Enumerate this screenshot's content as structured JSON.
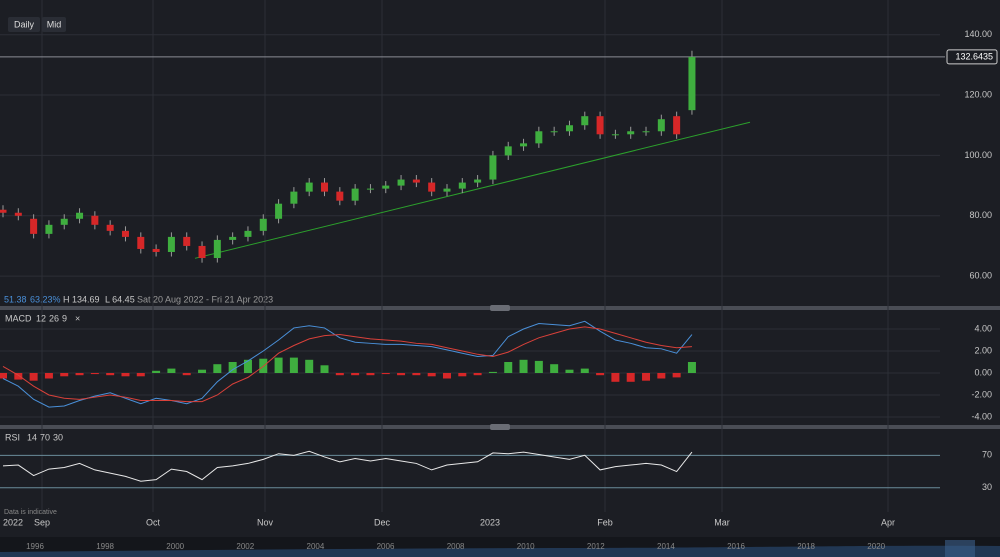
{
  "toolbar": {
    "buttons": [
      "Daily",
      "Mid"
    ]
  },
  "chart_data": [
    {
      "type": "candlestick",
      "up_color": "#3fae3f",
      "down_color": "#d62728",
      "open": [
        82,
        81,
        79,
        74,
        77,
        79,
        80,
        77,
        75,
        73,
        69,
        68,
        73,
        70,
        66,
        72,
        73,
        75,
        79,
        84,
        88,
        91,
        88,
        85,
        89,
        89,
        90,
        92,
        91,
        88,
        89,
        91,
        92,
        100,
        103,
        104,
        108,
        108,
        110,
        113,
        107,
        107,
        108,
        108,
        113,
        115
      ],
      "high": [
        83.5,
        82.5,
        80.5,
        78.5,
        80.5,
        82.5,
        81.5,
        78.5,
        76.5,
        74.5,
        70.5,
        74.5,
        74.5,
        71.5,
        73.5,
        74.5,
        76.5,
        80.5,
        85.5,
        89.5,
        92.5,
        92.5,
        89.5,
        90.5,
        90.5,
        91.5,
        93.5,
        93.5,
        92.5,
        90.5,
        92.5,
        93.5,
        101.5,
        104.5,
        105.5,
        109.5,
        109.5,
        111.5,
        114.5,
        114.5,
        108.5,
        109.5,
        109.5,
        113.5,
        114.5,
        134.69
      ],
      "low": [
        79.5,
        78.5,
        72.5,
        72.5,
        75.5,
        77.5,
        75.5,
        73.5,
        71.5,
        67.5,
        66.5,
        66.5,
        68.5,
        64.45,
        64.5,
        70.5,
        71.5,
        73.5,
        77.5,
        82.5,
        86.5,
        86.5,
        83.5,
        83.5,
        87.5,
        87.5,
        88.5,
        89.5,
        86.5,
        86.5,
        87.5,
        89.5,
        90.5,
        98.5,
        101.5,
        102.5,
        106.5,
        106.5,
        108.5,
        105.5,
        105.5,
        105.5,
        106.5,
        106.5,
        105.5,
        113.5
      ],
      "close": [
        81,
        80,
        74,
        77,
        79,
        81,
        77,
        75,
        73,
        69,
        68,
        73,
        70,
        66,
        72,
        73,
        75,
        79,
        84,
        88,
        91,
        88,
        85,
        89,
        89,
        90,
        92,
        91,
        88,
        89,
        91,
        92,
        100,
        103,
        104,
        108,
        108,
        110,
        113,
        107,
        107,
        108,
        108,
        112,
        107,
        132.6435
      ],
      "ylim": [
        50.1,
        151.5
      ],
      "yticks": [
        {
          "value": 60,
          "label": "60.00"
        },
        {
          "value": 80,
          "label": "80.00"
        },
        {
          "value": 100,
          "label": "100.00"
        },
        {
          "value": 120,
          "label": "120.00"
        },
        {
          "value": 140,
          "label": "140.00"
        }
      ],
      "last_price": {
        "value": 132.6435,
        "label": "132.6435"
      },
      "trendline": {
        "color": "#2ca02c",
        "values": [
          65.9,
          111
        ]
      },
      "stats": [
        "51.38",
        "63.23%"
      ],
      "high_text": "H 134.69",
      "low_text": "L 64.45",
      "range_text": "Sat 20 Aug 2022 - Fri 21 Apr 2023"
    },
    {
      "type": "macd",
      "title": "MACD",
      "params": [
        12,
        26,
        9
      ],
      "close_icon": "×",
      "series": [
        {
          "color": "#4a90d9",
          "values": [
            -0.5,
            -1.2,
            -2.4,
            -3.1,
            -3.0,
            -2.5,
            -2.1,
            -1.8,
            -2.3,
            -2.8,
            -2.3,
            -2.5,
            -2.8,
            -2.3,
            -0.8,
            0.3,
            1.1,
            2.0,
            3.0,
            4.1,
            4.3,
            4.1,
            3.2,
            2.8,
            2.7,
            2.6,
            2.6,
            2.5,
            2.4,
            2.1,
            1.8,
            1.5,
            1.6,
            3.3,
            4.0,
            4.5,
            4.4,
            4.3,
            4.7,
            3.8,
            3.0,
            2.7,
            2.3,
            2.2,
            1.8,
            3.5
          ]
        },
        {
          "color": "#d9413a",
          "values": [
            0.6,
            -0.2,
            -1.2,
            -2.0,
            -2.3,
            -2.4,
            -2.2,
            -2.0,
            -2.2,
            -2.5,
            -2.5,
            -2.5,
            -2.6,
            -2.6,
            -2.0,
            -1.0,
            -0.4,
            0.6,
            1.8,
            2.5,
            3.1,
            3.4,
            3.5,
            3.3,
            3.1,
            3.0,
            2.9,
            2.7,
            2.6,
            2.3,
            2.0,
            1.7,
            1.5,
            1.9,
            2.6,
            3.2,
            3.6,
            4.0,
            4.2,
            4.0,
            3.6,
            3.2,
            2.8,
            2.5,
            2.3,
            2.4
          ]
        }
      ],
      "histogram": {
        "up_color": "#3fae3f",
        "down_color": "#d62728",
        "values": [
          -0.5,
          -0.6,
          -0.7,
          -0.5,
          -0.3,
          -0.2,
          -0.1,
          -0.2,
          -0.3,
          -0.3,
          0.2,
          0.4,
          -0.2,
          0.3,
          0.8,
          1.0,
          1.2,
          1.3,
          1.4,
          1.4,
          1.2,
          0.7,
          -0.2,
          -0.2,
          -0.2,
          -0.1,
          -0.2,
          -0.2,
          -0.3,
          -0.5,
          -0.3,
          -0.2,
          0.1,
          1.0,
          1.2,
          1.1,
          0.8,
          0.3,
          0.4,
          -0.2,
          -0.8,
          -0.8,
          -0.7,
          -0.5,
          -0.4,
          1.0
        ]
      },
      "ylim": [
        -4.73,
        5.73
      ],
      "yticks": [
        {
          "value": 4,
          "label": "4.00"
        },
        {
          "value": 2,
          "label": "2.00"
        },
        {
          "value": 0,
          "label": "0.00"
        },
        {
          "value": -2,
          "label": "-2.00"
        },
        {
          "value": -4,
          "label": "-4.00"
        }
      ]
    },
    {
      "type": "rsi",
      "title": "RSI",
      "params": [
        14,
        70,
        30
      ],
      "series": [
        {
          "color": "#e8e8e8",
          "values": [
            57,
            58,
            45,
            53,
            55,
            60,
            52,
            48,
            44,
            38,
            40,
            53,
            50,
            40,
            55,
            57,
            60,
            65,
            72,
            70,
            75,
            68,
            62,
            66,
            63,
            66,
            63,
            60,
            52,
            58,
            60,
            62,
            73,
            72,
            74,
            71,
            68,
            65,
            70,
            52,
            56,
            58,
            60,
            58,
            50,
            74
          ]
        }
      ],
      "ylim": [
        2.5,
        102.5
      ],
      "yticks": [
        70,
        30
      ]
    }
  ],
  "time_axis": [
    "2022",
    "Sep",
    "Oct",
    "Nov",
    "Dec",
    "2023",
    "Feb",
    "Mar",
    "Apr"
  ],
  "note": "Data is indicative",
  "navigator": {
    "years": [
      "1996",
      "1998",
      "2000",
      "2002",
      "2004",
      "2006",
      "2008",
      "2010",
      "2012",
      "2014",
      "2016",
      "2018",
      "2020"
    ]
  }
}
